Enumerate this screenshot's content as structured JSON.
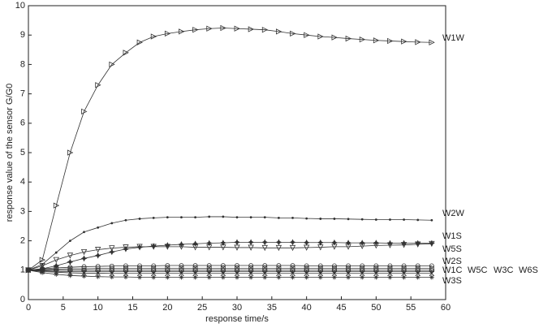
{
  "chart_data": {
    "type": "line",
    "xlabel": "response time/s",
    "ylabel": "response value of the sensor G/G0",
    "x": [
      0,
      2,
      4,
      6,
      8,
      10,
      12,
      14,
      16,
      18,
      20,
      22,
      24,
      26,
      28,
      30,
      32,
      34,
      36,
      38,
      40,
      42,
      44,
      46,
      48,
      50,
      52,
      54,
      56,
      58
    ],
    "xlim": [
      0,
      60
    ],
    "ylim": [
      0,
      10
    ],
    "xticks": [
      0,
      5,
      10,
      15,
      20,
      25,
      30,
      35,
      40,
      45,
      50,
      55,
      60
    ],
    "yticks": [
      0,
      1,
      2,
      3,
      4,
      5,
      6,
      7,
      8,
      9,
      10
    ],
    "series": [
      {
        "name": "W1W",
        "color": "#333333",
        "marker": "triangle-right",
        "values": [
          1.0,
          1.35,
          3.2,
          5.0,
          6.4,
          7.3,
          8.0,
          8.4,
          8.75,
          8.95,
          9.05,
          9.12,
          9.18,
          9.22,
          9.24,
          9.22,
          9.2,
          9.18,
          9.12,
          9.05,
          9.0,
          8.95,
          8.92,
          8.88,
          8.85,
          8.82,
          8.8,
          8.78,
          8.76,
          8.75
        ]
      },
      {
        "name": "W2W",
        "color": "#333333",
        "marker": "dot",
        "values": [
          1.0,
          1.2,
          1.6,
          2.0,
          2.3,
          2.45,
          2.6,
          2.7,
          2.75,
          2.78,
          2.8,
          2.8,
          2.8,
          2.82,
          2.82,
          2.8,
          2.8,
          2.8,
          2.78,
          2.78,
          2.76,
          2.75,
          2.75,
          2.74,
          2.73,
          2.72,
          2.72,
          2.72,
          2.71,
          2.7
        ]
      },
      {
        "name": "W1S",
        "color": "#333333",
        "marker": "star",
        "values": [
          1.0,
          1.05,
          1.15,
          1.28,
          1.4,
          1.5,
          1.62,
          1.72,
          1.78,
          1.82,
          1.85,
          1.88,
          1.9,
          1.92,
          1.93,
          1.95,
          1.95,
          1.95,
          1.95,
          1.95,
          1.94,
          1.94,
          1.94,
          1.93,
          1.93,
          1.93,
          1.92,
          1.92,
          1.92,
          1.92
        ]
      },
      {
        "name": "W5S",
        "color": "#333333",
        "marker": "triangle-down",
        "values": [
          1.0,
          1.15,
          1.35,
          1.5,
          1.62,
          1.7,
          1.75,
          1.78,
          1.8,
          1.8,
          1.8,
          1.8,
          1.78,
          1.78,
          1.78,
          1.77,
          1.77,
          1.76,
          1.76,
          1.76,
          1.77,
          1.78,
          1.8,
          1.8,
          1.82,
          1.84,
          1.85,
          1.86,
          1.88,
          1.9
        ]
      },
      {
        "name": "W2S",
        "color": "#333333",
        "marker": "circle",
        "values": [
          1.0,
          1.05,
          1.08,
          1.1,
          1.12,
          1.13,
          1.14,
          1.15,
          1.15,
          1.15,
          1.16,
          1.16,
          1.16,
          1.16,
          1.16,
          1.16,
          1.16,
          1.16,
          1.16,
          1.16,
          1.15,
          1.15,
          1.15,
          1.15,
          1.15,
          1.15,
          1.15,
          1.15,
          1.15,
          1.15
        ]
      },
      {
        "name": "W1C",
        "color": "#333333",
        "marker": "square",
        "values": [
          1.0,
          1.02,
          1.04,
          1.05,
          1.05,
          1.06,
          1.06,
          1.06,
          1.06,
          1.06,
          1.06,
          1.06,
          1.06,
          1.06,
          1.06,
          1.06,
          1.06,
          1.06,
          1.06,
          1.06,
          1.06,
          1.06,
          1.06,
          1.06,
          1.06,
          1.06,
          1.06,
          1.06,
          1.06,
          1.06
        ]
      },
      {
        "name": "W5C",
        "color": "#333333",
        "marker": "diamond",
        "values": [
          1.0,
          1.0,
          1.0,
          1.0,
          1.0,
          1.0,
          1.0,
          1.0,
          1.0,
          1.0,
          1.0,
          1.0,
          1.0,
          1.0,
          1.0,
          1.0,
          1.0,
          1.0,
          1.0,
          1.0,
          1.0,
          1.0,
          1.0,
          1.0,
          1.0,
          1.0,
          1.0,
          1.0,
          1.0,
          1.0
        ]
      },
      {
        "name": "W3C",
        "color": "#333333",
        "marker": "plus",
        "values": [
          1.0,
          0.98,
          0.96,
          0.95,
          0.95,
          0.95,
          0.95,
          0.95,
          0.95,
          0.95,
          0.95,
          0.95,
          0.95,
          0.95,
          0.95,
          0.95,
          0.95,
          0.95,
          0.95,
          0.95,
          0.95,
          0.95,
          0.95,
          0.95,
          0.95,
          0.95,
          0.95,
          0.95,
          0.95,
          0.95
        ]
      },
      {
        "name": "W6S",
        "color": "#333333",
        "marker": "x",
        "values": [
          1.0,
          0.96,
          0.93,
          0.91,
          0.9,
          0.9,
          0.89,
          0.89,
          0.89,
          0.89,
          0.89,
          0.89,
          0.89,
          0.89,
          0.89,
          0.89,
          0.89,
          0.89,
          0.89,
          0.89,
          0.89,
          0.89,
          0.89,
          0.89,
          0.89,
          0.89,
          0.89,
          0.89,
          0.89,
          0.89
        ]
      },
      {
        "name": "W3S",
        "color": "#333333",
        "marker": "asterisk",
        "values": [
          1.0,
          0.92,
          0.86,
          0.82,
          0.8,
          0.78,
          0.77,
          0.77,
          0.76,
          0.76,
          0.76,
          0.76,
          0.76,
          0.76,
          0.76,
          0.76,
          0.76,
          0.76,
          0.76,
          0.76,
          0.76,
          0.76,
          0.76,
          0.76,
          0.76,
          0.76,
          0.76,
          0.76,
          0.76,
          0.76
        ]
      }
    ]
  }
}
